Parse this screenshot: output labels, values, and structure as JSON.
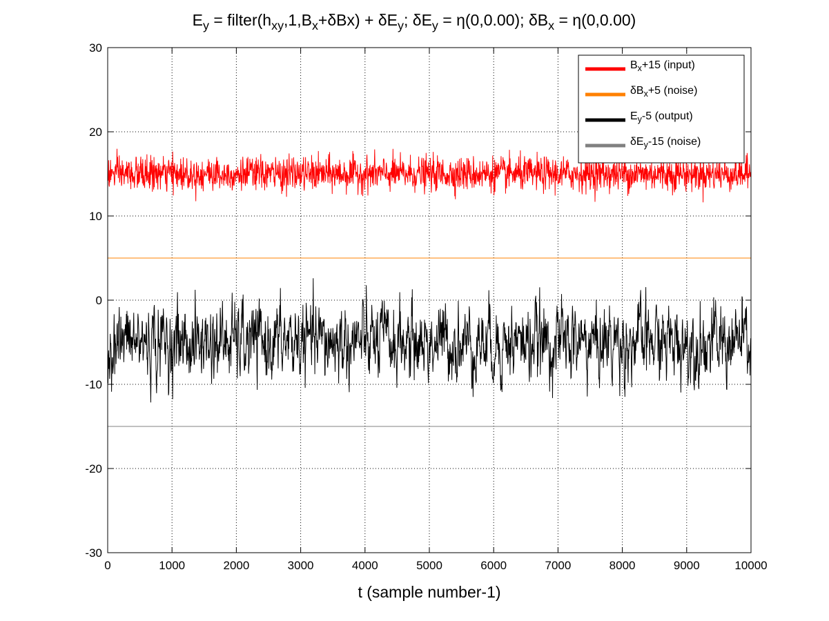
{
  "chart_data": {
    "type": "line",
    "title": {
      "parts": [
        {
          "t": "E"
        },
        {
          "t": "y",
          "sub": true
        },
        {
          "t": " = filter(h"
        },
        {
          "t": "xy",
          "sub": true
        },
        {
          "t": ",1,B"
        },
        {
          "t": "x",
          "sub": true
        },
        {
          "t": "+δBx) + δE"
        },
        {
          "t": "y",
          "sub": true
        },
        {
          "t": "; δE"
        },
        {
          "t": "y",
          "sub": true
        },
        {
          "t": " = η(0,0.00); δB"
        },
        {
          "t": "x",
          "sub": true
        },
        {
          "t": " = η(0,0.00)"
        }
      ]
    },
    "xlabel": "t (sample number-1)",
    "ylabel": "",
    "xlim": [
      0,
      10000
    ],
    "ylim": [
      -30,
      30
    ],
    "xticks": [
      0,
      1000,
      2000,
      3000,
      4000,
      5000,
      6000,
      7000,
      8000,
      9000,
      10000
    ],
    "xtick_labels": [
      "0",
      "1000",
      "2000",
      "3000",
      "4000",
      "5000",
      "6000",
      "7000",
      "8000",
      "9000",
      "10000"
    ],
    "yticks": [
      -30,
      -20,
      -10,
      0,
      10,
      20,
      30
    ],
    "ytick_labels": [
      "-30",
      "-20",
      "-10",
      "0",
      "10",
      "20",
      "30"
    ],
    "grid": true,
    "legend_position": "top-right",
    "series": [
      {
        "key": "bx_input",
        "kind": "noise",
        "color": "#ff0000",
        "legend_parts": [
          {
            "t": "B"
          },
          {
            "t": "x",
            "sub": true
          },
          {
            "t": "+15 (input)"
          }
        ],
        "offset": 15,
        "std": 1.0,
        "min": 11,
        "max": 19,
        "n_samples": 10000
      },
      {
        "key": "dbx_noise",
        "kind": "constant",
        "color": "#ff8000",
        "legend_parts": [
          {
            "t": "δB"
          },
          {
            "t": "x",
            "sub": true
          },
          {
            "t": "+5 (noise)"
          }
        ],
        "value": 5
      },
      {
        "key": "ey_output",
        "kind": "filtered-noise",
        "color": "#000000",
        "legend_parts": [
          {
            "t": "E"
          },
          {
            "t": "y",
            "sub": true
          },
          {
            "t": "-5 (output)"
          }
        ],
        "offset": -5,
        "std": 2.3,
        "min": -15,
        "max": 3,
        "n_samples": 10000
      },
      {
        "key": "dey_noise",
        "kind": "constant",
        "color": "#808080",
        "legend_parts": [
          {
            "t": "δE"
          },
          {
            "t": "y",
            "sub": true
          },
          {
            "t": "-15 (noise)"
          }
        ],
        "value": -15
      }
    ]
  }
}
